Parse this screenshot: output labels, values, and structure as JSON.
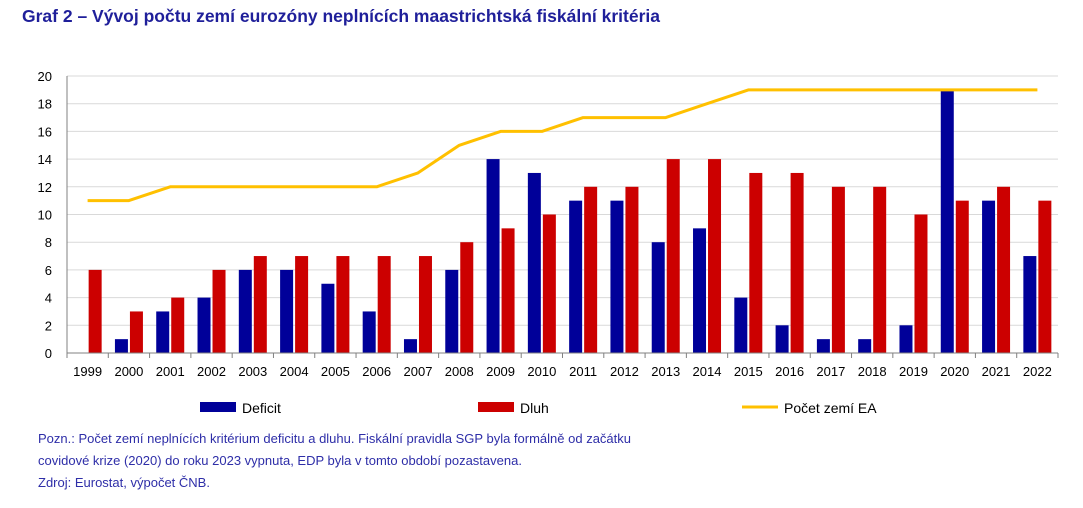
{
  "title": "Graf 2 – Vývoj počtu zemí eurozóny neplnících maastrichtská fiskální kritéria",
  "notes": [
    "Pozn.: Počet zemí neplnících kritérium deficitu a dluhu. Fiskální pravidla SGP byla formálně od začátku",
    "covidové krize (2020) do roku 2023 vypnuta, EDP byla v tomto období pozastavena.",
    "Zdroj:  Eurostat, výpočet ČNB."
  ],
  "chart_data": {
    "type": "bar",
    "categories": [
      "1999",
      "2000",
      "2001",
      "2002",
      "2003",
      "2004",
      "2005",
      "2006",
      "2007",
      "2008",
      "2009",
      "2010",
      "2011",
      "2012",
      "2013",
      "2014",
      "2015",
      "2016",
      "2017",
      "2018",
      "2019",
      "2020",
      "2021",
      "2022"
    ],
    "series": [
      {
        "name": "Deficit",
        "kind": "bar",
        "color": "#000099",
        "values": [
          0,
          1,
          3,
          4,
          6,
          6,
          5,
          3,
          1,
          6,
          14,
          13,
          11,
          11,
          8,
          9,
          4,
          2,
          1,
          1,
          2,
          19,
          11,
          7
        ]
      },
      {
        "name": "Dluh",
        "kind": "bar",
        "color": "#cc0000",
        "values": [
          6,
          3,
          4,
          6,
          7,
          7,
          7,
          7,
          7,
          8,
          9,
          10,
          12,
          12,
          14,
          14,
          13,
          13,
          12,
          12,
          10,
          11,
          12,
          11
        ]
      },
      {
        "name": "Počet zemí EA",
        "kind": "line",
        "color": "#ffc000",
        "values": [
          11,
          11,
          12,
          12,
          12,
          12,
          12,
          12,
          13,
          15,
          16,
          16,
          17,
          17,
          17,
          18,
          19,
          19,
          19,
          19,
          19,
          19,
          19,
          19
        ]
      }
    ],
    "ylim": [
      0,
      20
    ],
    "yticks": [
      0,
      2,
      4,
      6,
      8,
      10,
      12,
      14,
      16,
      18,
      20
    ],
    "grid": true,
    "legend": "bottom"
  }
}
